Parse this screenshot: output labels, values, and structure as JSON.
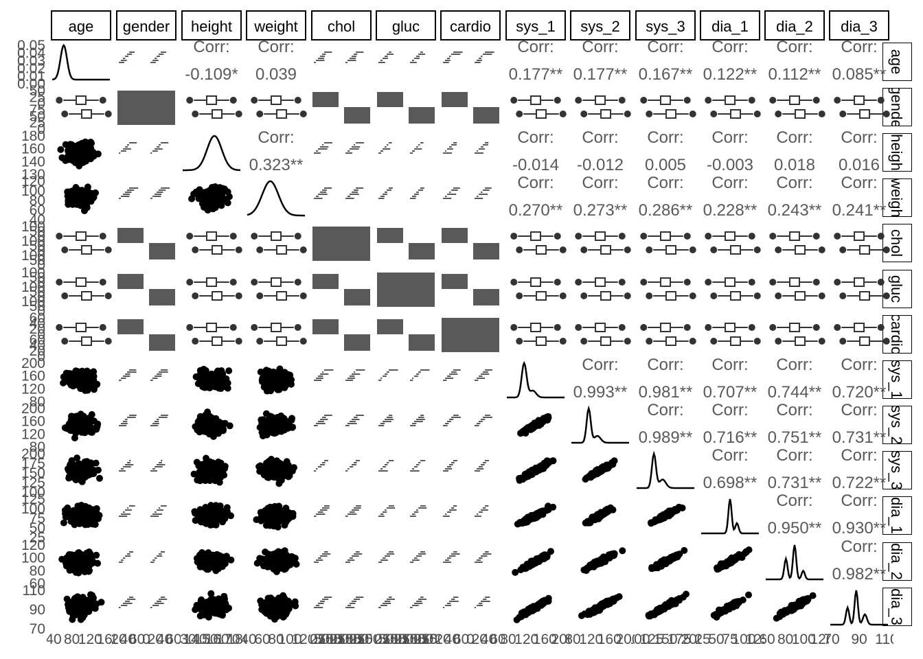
{
  "chart_data": {
    "type": "scatter",
    "variables": [
      "age",
      "gender",
      "height",
      "weight",
      "chol",
      "gluc",
      "cardio",
      "sys_1",
      "sys_2",
      "sys_3",
      "dia_1",
      "dia_2",
      "dia_3"
    ],
    "column_strip_labels": [
      "age",
      "gender",
      "height",
      "weight",
      "chol",
      "gluc",
      "cardio",
      "sys_1",
      "sys_2",
      "sys_3",
      "dia_1",
      "dia_2",
      "dia_3"
    ],
    "row_strip_labels": [
      "age",
      "gende",
      "heigh",
      "weigh",
      "chol",
      "gluc",
      "cardio",
      "sys_1",
      "sys_2",
      "sys_3",
      "dia_1",
      "dia_2",
      "dia_3"
    ],
    "correlations": [
      {
        "row": "age",
        "col": "height",
        "label": "Corr:",
        "value": "-0.109*"
      },
      {
        "row": "age",
        "col": "weight",
        "label": "Corr:",
        "value": "0.039"
      },
      {
        "row": "age",
        "col": "sys_1",
        "label": "Corr:",
        "value": "0.177**"
      },
      {
        "row": "age",
        "col": "sys_2",
        "label": "Corr:",
        "value": "0.177**"
      },
      {
        "row": "age",
        "col": "sys_3",
        "label": "Corr:",
        "value": "0.167**"
      },
      {
        "row": "age",
        "col": "dia_1",
        "label": "Corr:",
        "value": "0.122**"
      },
      {
        "row": "age",
        "col": "dia_2",
        "label": "Corr:",
        "value": "0.112**"
      },
      {
        "row": "age",
        "col": "dia_3",
        "label": "Corr:",
        "value": "0.085**"
      },
      {
        "row": "height",
        "col": "weight",
        "label": "Corr:",
        "value": "0.323**"
      },
      {
        "row": "height",
        "col": "sys_1",
        "label": "Corr:",
        "value": "-0.014"
      },
      {
        "row": "height",
        "col": "sys_2",
        "label": "Corr:",
        "value": "-0.012"
      },
      {
        "row": "height",
        "col": "sys_3",
        "label": "Corr:",
        "value": "0.005"
      },
      {
        "row": "height",
        "col": "dia_1",
        "label": "Corr:",
        "value": "-0.003"
      },
      {
        "row": "height",
        "col": "dia_2",
        "label": "Corr:",
        "value": "0.018"
      },
      {
        "row": "height",
        "col": "dia_3",
        "label": "Corr:",
        "value": "0.016"
      },
      {
        "row": "weight",
        "col": "sys_1",
        "label": "Corr:",
        "value": "0.270**"
      },
      {
        "row": "weight",
        "col": "sys_2",
        "label": "Corr:",
        "value": "0.273**"
      },
      {
        "row": "weight",
        "col": "sys_3",
        "label": "Corr:",
        "value": "0.286**"
      },
      {
        "row": "weight",
        "col": "dia_1",
        "label": "Corr:",
        "value": "0.228**"
      },
      {
        "row": "weight",
        "col": "dia_2",
        "label": "Corr:",
        "value": "0.243**"
      },
      {
        "row": "weight",
        "col": "dia_3",
        "label": "Corr:",
        "value": "0.241**"
      },
      {
        "row": "sys_1",
        "col": "sys_2",
        "label": "Corr:",
        "value": "0.993**"
      },
      {
        "row": "sys_1",
        "col": "sys_3",
        "label": "Corr:",
        "value": "0.981**"
      },
      {
        "row": "sys_1",
        "col": "dia_1",
        "label": "Corr:",
        "value": "0.707**"
      },
      {
        "row": "sys_1",
        "col": "dia_2",
        "label": "Corr:",
        "value": "0.744**"
      },
      {
        "row": "sys_1",
        "col": "dia_3",
        "label": "Corr:",
        "value": "0.720**"
      },
      {
        "row": "sys_2",
        "col": "sys_3",
        "label": "Corr:",
        "value": "0.989**"
      },
      {
        "row": "sys_2",
        "col": "dia_1",
        "label": "Corr:",
        "value": "0.716**"
      },
      {
        "row": "sys_2",
        "col": "dia_2",
        "label": "Corr:",
        "value": "0.751**"
      },
      {
        "row": "sys_2",
        "col": "dia_3",
        "label": "Corr:",
        "value": "0.731**"
      },
      {
        "row": "sys_3",
        "col": "dia_1",
        "label": "Corr:",
        "value": "0.698**"
      },
      {
        "row": "sys_3",
        "col": "dia_2",
        "label": "Corr:",
        "value": "0.731**"
      },
      {
        "row": "sys_3",
        "col": "dia_3",
        "label": "Corr:",
        "value": "0.722**"
      },
      {
        "row": "dia_1",
        "col": "dia_2",
        "label": "Corr:",
        "value": "0.950**"
      },
      {
        "row": "dia_1",
        "col": "dia_3",
        "label": "Corr:",
        "value": "0.930**"
      },
      {
        "row": "dia_2",
        "col": "dia_3",
        "label": "Corr:",
        "value": "0.982**"
      }
    ],
    "y_tick_labels": {
      "age": [
        "0.05",
        "0.04",
        "0.03",
        "0.02",
        "0.01",
        "0.00"
      ],
      "gender": [
        "50",
        "25",
        "0",
        "75",
        "50",
        "25",
        "0"
      ],
      "height": [
        "180",
        "160",
        "140",
        "130"
      ],
      "weight": [
        "120",
        "100",
        "80",
        "60",
        "40"
      ],
      "chol": [
        "100",
        "50",
        "0",
        "100",
        "50",
        "0",
        "100",
        "50",
        "0"
      ],
      "gluc": [
        "100",
        "50",
        "0",
        "100",
        "50",
        "0",
        "100",
        "50",
        "0"
      ],
      "cardio": [
        "60",
        "40",
        "20",
        "0",
        "60",
        "40",
        "20",
        "0"
      ],
      "sys_1": [
        "200",
        "160",
        "120",
        "80"
      ],
      "sys_2": [
        "200",
        "160",
        "120",
        "80"
      ],
      "sys_3": [
        "200",
        "175",
        "150",
        "125",
        "100"
      ],
      "dia_1": [
        "125",
        "100",
        "75",
        "50",
        "25"
      ],
      "dia_2": [
        "120",
        "100",
        "80",
        "60"
      ],
      "dia_3": [
        "110",
        "90",
        "70"
      ]
    },
    "x_tick_labels": {
      "age": [
        "40",
        "80",
        "120",
        "160"
      ],
      "gender": [
        "20",
        "40",
        "60",
        "0",
        "20",
        "40",
        "60"
      ],
      "height": [
        "130",
        "140",
        "150",
        "160",
        "170",
        "180"
      ],
      "weight": [
        "40",
        "60",
        "80",
        "100",
        "120"
      ],
      "chol": [
        "0",
        "25",
        "50",
        "75",
        "100",
        "0",
        "25",
        "50",
        "75",
        "100",
        "0",
        "25",
        "50",
        "75",
        "100"
      ],
      "gluc": [
        "0",
        "25",
        "50",
        "75",
        "100",
        "0",
        "25",
        "50",
        "75",
        "100",
        "0",
        "25",
        "50",
        "75",
        "100"
      ],
      "cardio": [
        "20",
        "40",
        "60",
        "0",
        "20",
        "40",
        "60"
      ],
      "sys_1": [
        "80",
        "120",
        "160",
        "200"
      ],
      "sys_2": [
        "80",
        "120",
        "160",
        "200"
      ],
      "sys_3": [
        "100",
        "125",
        "150",
        "175",
        "200"
      ],
      "dia_1": [
        "25",
        "50",
        "75",
        "100",
        "125"
      ],
      "dia_2": [
        "60",
        "80",
        "100",
        "120"
      ],
      "dia_3": [
        "70",
        "90",
        "110"
      ]
    },
    "grid": false,
    "legend": "none"
  }
}
